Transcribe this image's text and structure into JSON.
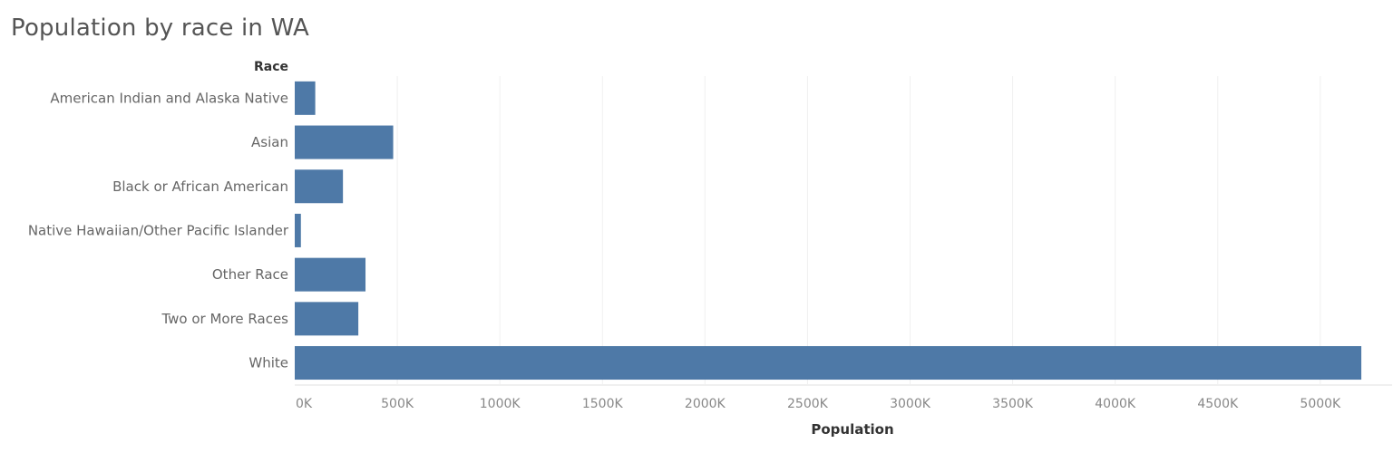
{
  "colors": {
    "bar": "#4e79a7",
    "gridline": "#f0f0f0",
    "axis": "#e0e0e0"
  },
  "chart_data": {
    "type": "bar",
    "orientation": "horizontal",
    "title": "Population by race in WA",
    "row_header": "Race",
    "xlabel": "Population",
    "ylabel": "",
    "categories": [
      "American Indian and Alaska Native",
      "Asian",
      "Black or African American",
      "Native Hawaiian/Other Pacific Islander",
      "Other Race",
      "Two or More Races",
      "White"
    ],
    "values": [
      100000,
      480000,
      235000,
      30000,
      345000,
      310000,
      5200000
    ],
    "xlim": [
      0,
      5350000
    ],
    "xticks": [
      0,
      500000,
      1000000,
      1500000,
      2000000,
      2500000,
      3000000,
      3500000,
      4000000,
      4500000,
      5000000
    ],
    "xtick_labels": [
      "0K",
      "500K",
      "1000K",
      "1500K",
      "2000K",
      "2500K",
      "3000K",
      "3500K",
      "4000K",
      "4500K",
      "5000K"
    ],
    "grid": true,
    "legend": "none"
  }
}
